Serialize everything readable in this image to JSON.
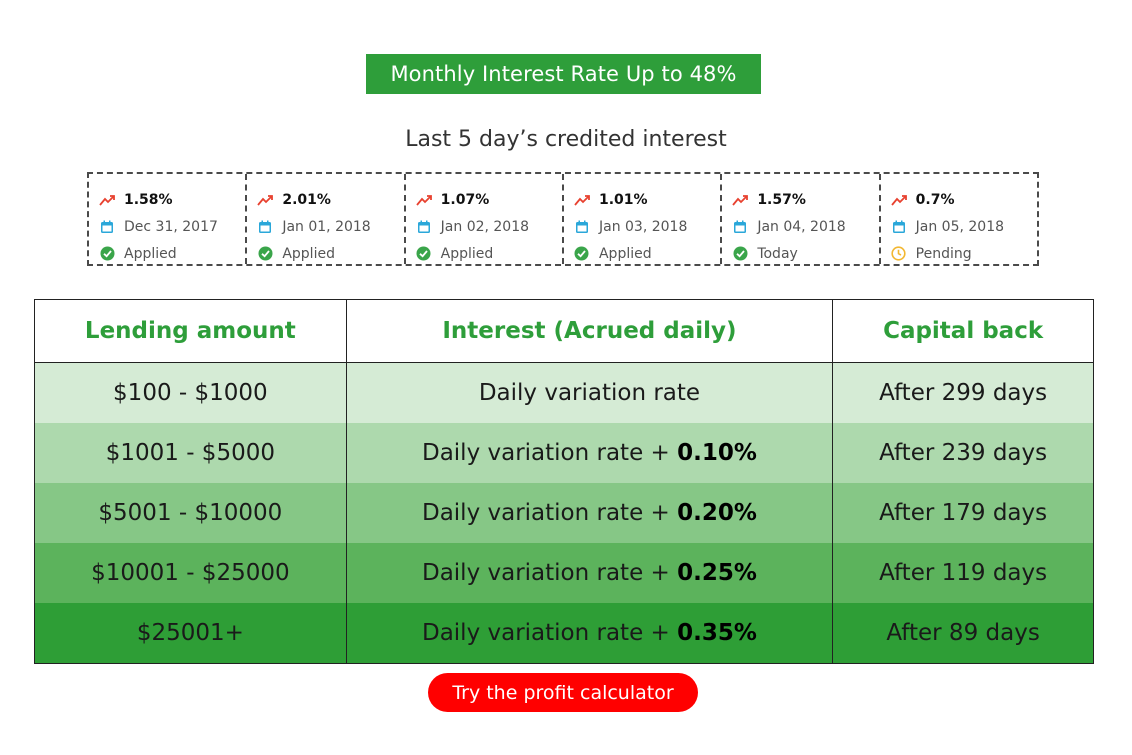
{
  "banner": "Monthly Interest Rate Up to 48%",
  "subtitle": "Last 5 day’s credited interest",
  "colors": {
    "green": "#2e9e3a",
    "red": "#ff0000",
    "trend": "#e8412f",
    "calendar": "#2aa7d9",
    "check": "#3aa54a",
    "pending": "#f2b731"
  },
  "days": [
    {
      "rate": "1.58%",
      "date": "Dec 31, 2017",
      "status": "Applied",
      "status_icon": "check-circle-icon"
    },
    {
      "rate": "2.01%",
      "date": "Jan 01, 2018",
      "status": "Applied",
      "status_icon": "check-circle-icon"
    },
    {
      "rate": "1.07%",
      "date": "Jan 02, 2018",
      "status": "Applied",
      "status_icon": "check-circle-icon"
    },
    {
      "rate": "1.01%",
      "date": "Jan 03, 2018",
      "status": "Applied",
      "status_icon": "check-circle-icon"
    },
    {
      "rate": "1.57%",
      "date": "Jan 04, 2018",
      "status": "Today",
      "status_icon": "check-circle-icon"
    },
    {
      "rate": "0.7%",
      "date": "Jan 05, 2018",
      "status": "Pending",
      "status_icon": "clock-icon"
    }
  ],
  "table": {
    "headers": [
      "Lending amount",
      "Interest (Acrued daily)",
      "Capital back"
    ],
    "rows": [
      {
        "amount": "$100 - $1000",
        "interest": "Daily variation rate",
        "bonus": "",
        "capital": "After 299 days"
      },
      {
        "amount": "$1001 - $5000",
        "interest": "Daily variation rate + ",
        "bonus": "0.10%",
        "capital": "After 239 days"
      },
      {
        "amount": "$5001 - $10000",
        "interest": "Daily variation rate + ",
        "bonus": "0.20%",
        "capital": "After 179 days"
      },
      {
        "amount": "$10001 - $25000",
        "interest": "Daily variation rate + ",
        "bonus": "0.25%",
        "capital": "After 119 days"
      },
      {
        "amount": "$25001+",
        "interest": "Daily variation rate + ",
        "bonus": "0.35%",
        "capital": "After 89 days"
      }
    ]
  },
  "calc_button": "Try the profit calculator"
}
